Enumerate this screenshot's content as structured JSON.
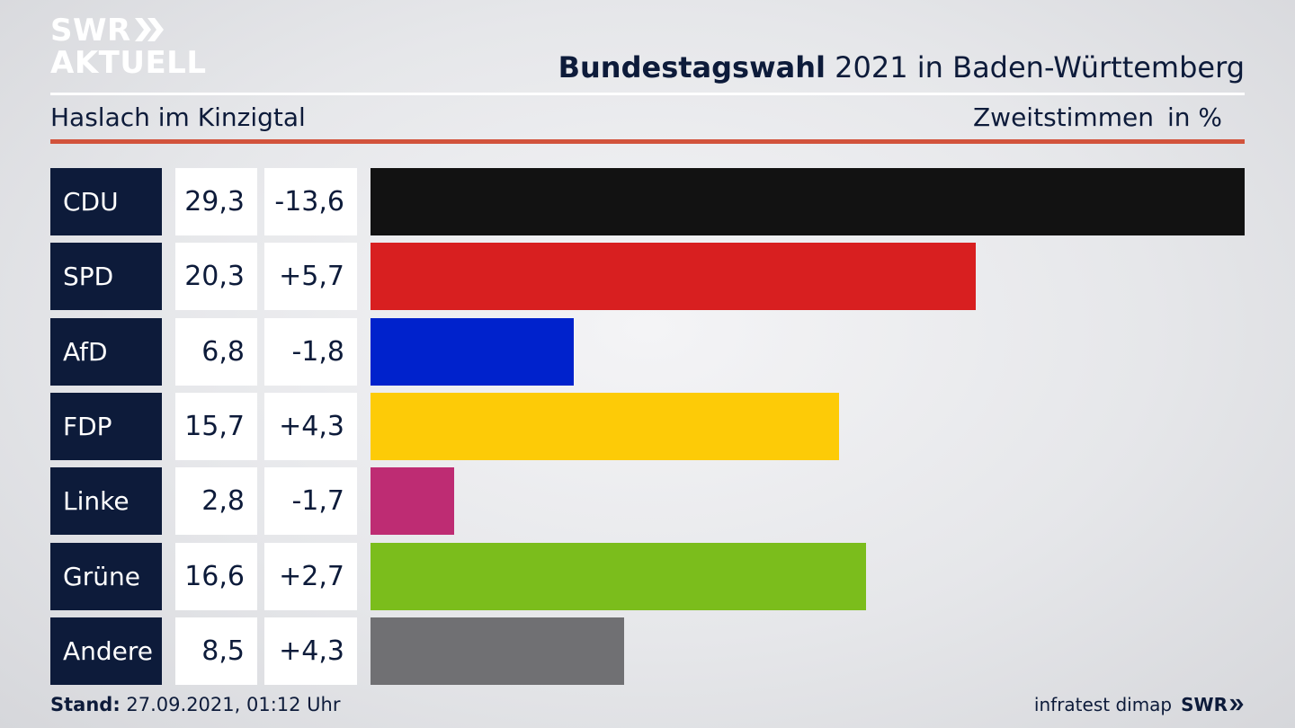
{
  "logo": {
    "line1": "SWR",
    "line2": "AKTUELL"
  },
  "header": {
    "title_bold": "Bundestagswahl",
    "title_rest": " 2021 in Baden-Württemberg",
    "subtitle": "Haslach im Kinzigtal",
    "vote_type": "Zweitstimmen",
    "unit": "in %"
  },
  "chart_data": {
    "type": "bar",
    "orientation": "horizontal",
    "categories": [
      "CDU",
      "SPD",
      "AfD",
      "FDP",
      "Linke",
      "Grüne",
      "Andere"
    ],
    "values": [
      29.3,
      20.3,
      6.8,
      15.7,
      2.8,
      16.6,
      8.5
    ],
    "value_labels": [
      "29,3",
      "20,3",
      "6,8",
      "15,7",
      "2,8",
      "16,6",
      "8,5"
    ],
    "diff_labels": [
      "-13,6",
      "+5,7",
      "-1,8",
      "+4,3",
      "-1,7",
      "+2,7",
      "+4,3"
    ],
    "diffs": [
      -13.6,
      5.7,
      -1.8,
      4.3,
      -1.7,
      2.7,
      4.3
    ],
    "colors": [
      "#121212",
      "#d81f20",
      "#0022cc",
      "#fdcb07",
      "#be2c73",
      "#7bbd1c",
      "#707073"
    ],
    "xlim": [
      0,
      29.3
    ]
  },
  "footer": {
    "stand_label": "Stand:",
    "stand_value": " 27.09.2021, 01:12 Uhr",
    "source": "infratest dimap",
    "brand": "SWR"
  }
}
